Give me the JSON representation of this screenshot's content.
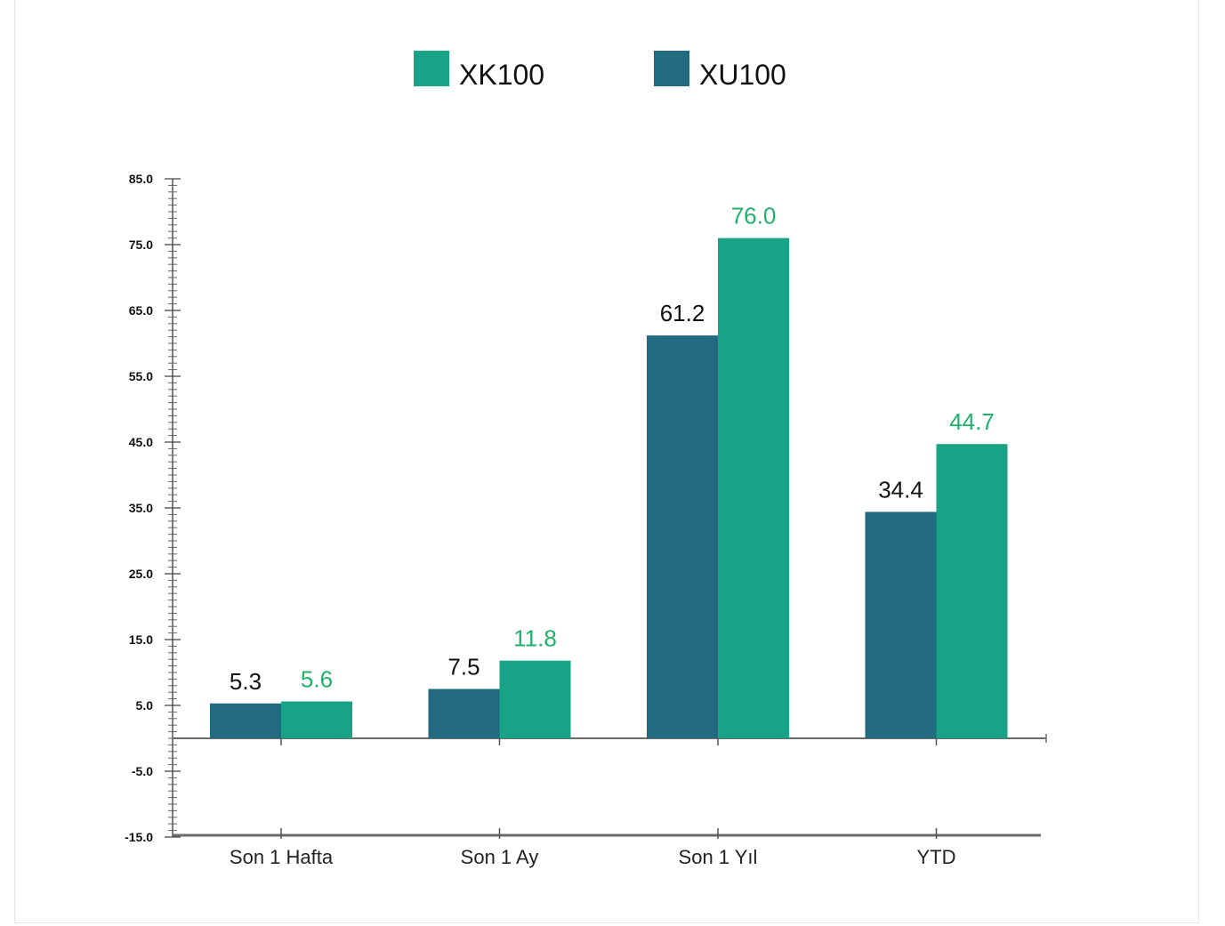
{
  "chart_data": {
    "type": "bar",
    "categories": [
      "Son 1 Hafta",
      "Son 1 Ay",
      "Son 1 Yıl",
      "YTD"
    ],
    "series": [
      {
        "name": "XU100",
        "values": [
          5.3,
          7.5,
          61.2,
          34.4
        ],
        "color": "#216a80",
        "label_color": "#111111"
      },
      {
        "name": "XK100",
        "values": [
          5.6,
          11.8,
          76.0,
          44.7
        ],
        "color": "#18a386",
        "label_color": "#1fb26a"
      }
    ],
    "legend_order": [
      "XK100",
      "XU100"
    ],
    "legend_position": "top",
    "ylim": [
      -15,
      85
    ],
    "yticks": [
      "85.0",
      "75.0",
      "65.0",
      "55.0",
      "45.0",
      "35.0",
      "25.0",
      "15.0",
      "5.0",
      "-5.0",
      "-15.0"
    ],
    "minor_tick_step": 1,
    "grid": false,
    "title": "",
    "xlabel": "",
    "ylabel": ""
  }
}
